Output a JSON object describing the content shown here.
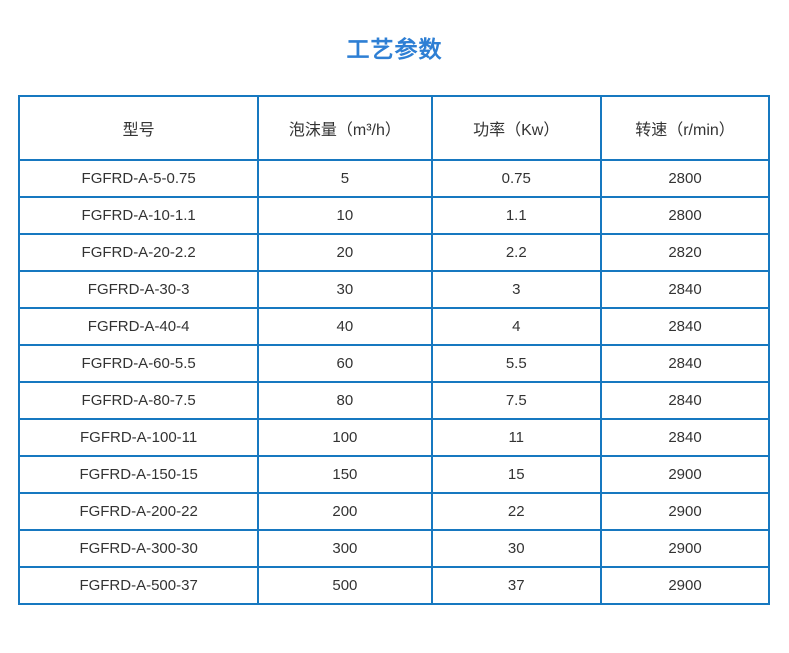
{
  "page": {
    "title": "工艺参数"
  },
  "colors": {
    "title_blue": "#2e7fd4",
    "border_blue": "#1778c0",
    "cell_text": "#333333"
  },
  "table": {
    "headers": [
      "型号",
      "泡沫量（m³/h）",
      "功率（Kw）",
      "转速（r/min）"
    ],
    "rows": [
      [
        "FGFRD-A-5-0.75",
        "5",
        "0.75",
        "2800"
      ],
      [
        "FGFRD-A-10-1.1",
        "10",
        "1.1",
        "2800"
      ],
      [
        "FGFRD-A-20-2.2",
        "20",
        "2.2",
        "2820"
      ],
      [
        "FGFRD-A-30-3",
        "30",
        "3",
        "2840"
      ],
      [
        "FGFRD-A-40-4",
        "40",
        "4",
        "2840"
      ],
      [
        "FGFRD-A-60-5.5",
        "60",
        "5.5",
        "2840"
      ],
      [
        "FGFRD-A-80-7.5",
        "80",
        "7.5",
        "2840"
      ],
      [
        "FGFRD-A-100-11",
        "100",
        "11",
        "2840"
      ],
      [
        "FGFRD-A-150-15",
        "150",
        "15",
        "2900"
      ],
      [
        "FGFRD-A-200-22",
        "200",
        "22",
        "2900"
      ],
      [
        "FGFRD-A-300-30",
        "300",
        "30",
        "2900"
      ],
      [
        "FGFRD-A-500-37",
        "500",
        "37",
        "2900"
      ]
    ]
  }
}
